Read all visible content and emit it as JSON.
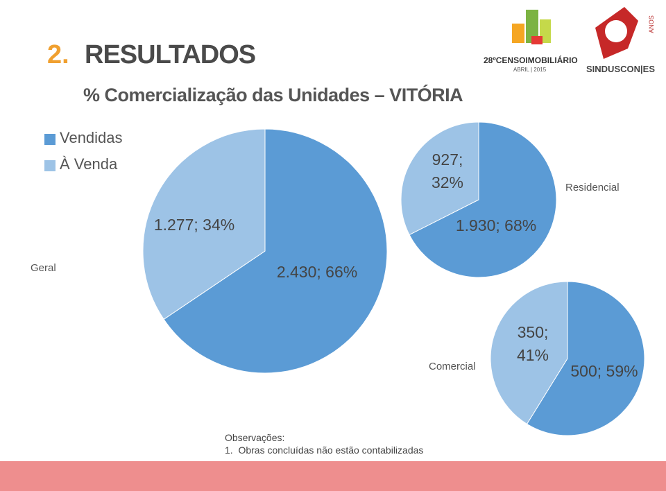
{
  "header": {
    "number": "2.",
    "title": "RESULTADOS",
    "subtitle": "% Comercialização das Unidades – VITÓRIA"
  },
  "logos": {
    "censo": "28ºCENSOIMOBILIÁRIO",
    "date": "ABRIL | 2015",
    "sinduscon": "SINDUSCON|ES",
    "anos": "ANOS"
  },
  "notes": {
    "heading": "Observações:",
    "items": [
      "1.  Obras concluídas não estão contabilizadas"
    ]
  },
  "chart_data": [
    {
      "type": "pie",
      "title": "Geral",
      "categories": [
        "Vendidas",
        "À Venda"
      ],
      "values": [
        2430,
        1277
      ],
      "value_labels": [
        "2.430; 66%",
        "1.277; 34%"
      ],
      "colors": [
        "#5b9bd5",
        "#9dc3e6"
      ],
      "legend": "top-left"
    },
    {
      "type": "pie",
      "title": "Residencial",
      "categories": [
        "Vendidas",
        "À Venda"
      ],
      "values": [
        1930,
        927
      ],
      "value_labels": [
        "1.930; 68%",
        "927; 32%"
      ],
      "colors": [
        "#5b9bd5",
        "#9dc3e6"
      ]
    },
    {
      "type": "pie",
      "title": "Comercial",
      "categories": [
        "Vendidas",
        "À Venda"
      ],
      "values": [
        500,
        350
      ],
      "value_labels": [
        "500; 59%",
        "350; 41%"
      ],
      "colors": [
        "#5b9bd5",
        "#9dc3e6"
      ]
    }
  ]
}
